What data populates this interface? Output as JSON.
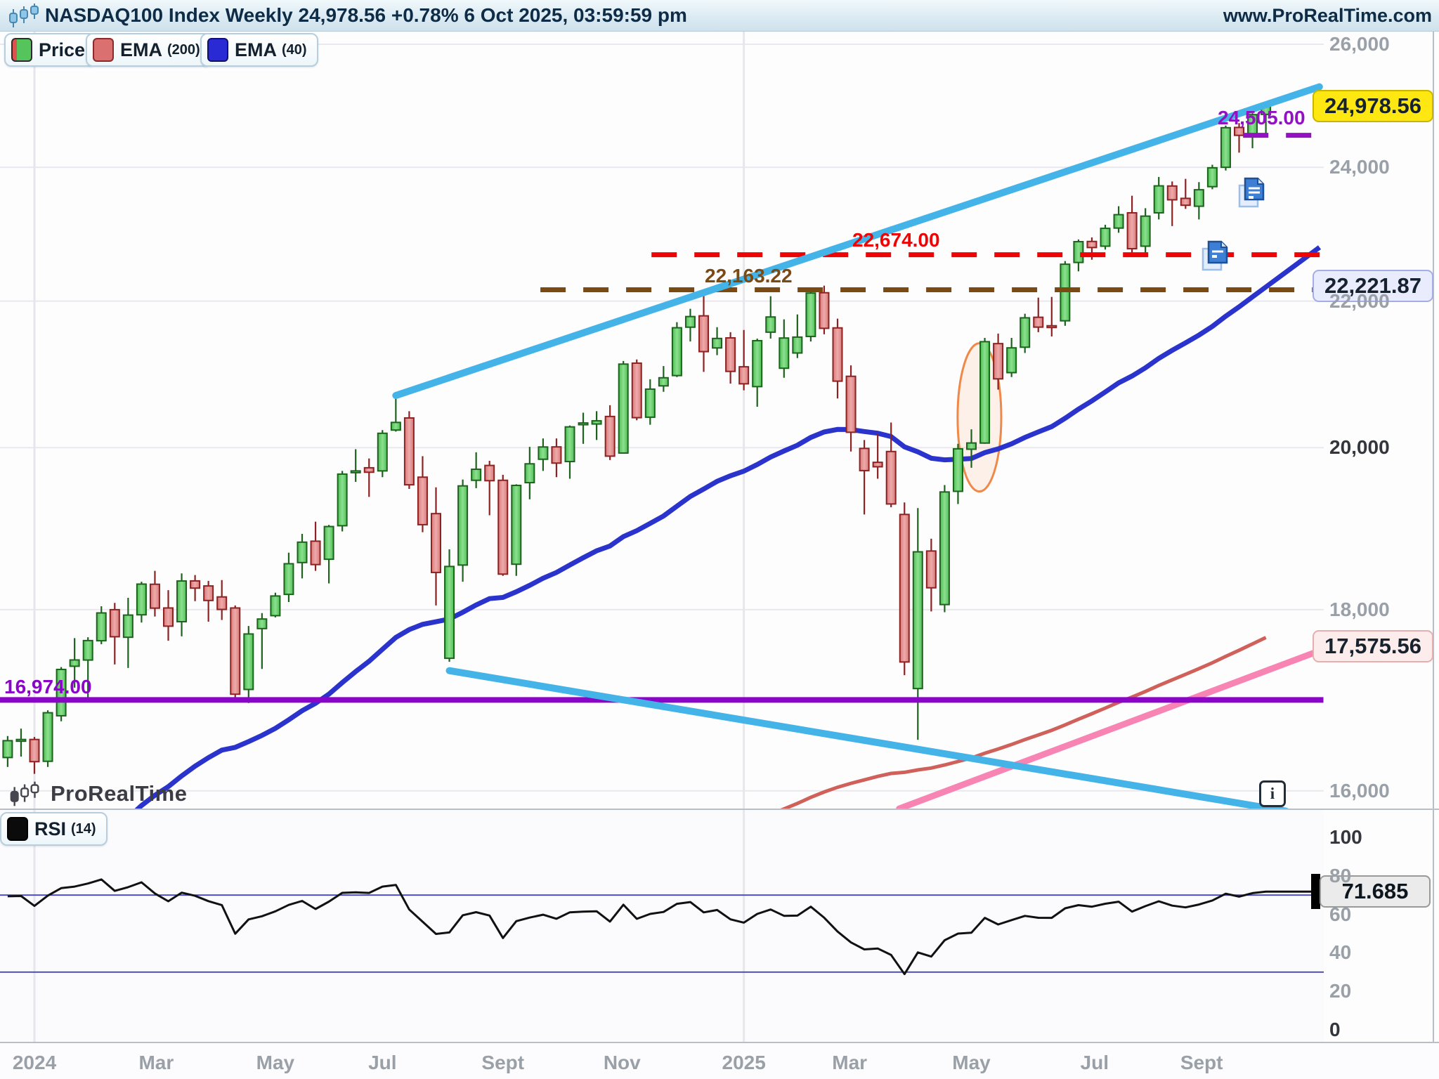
{
  "header": {
    "title": "NASDAQ100 Index Weekly 24,978.56 +0.78% 6 Oct 2025, 03:59:59 pm",
    "url": "www.ProRealTime.com"
  },
  "legend": {
    "price": {
      "label": "Price"
    },
    "ema200": {
      "label": "EMA",
      "param": "(200)"
    },
    "ema40": {
      "label": "EMA",
      "param": "(40)"
    }
  },
  "rsi_legend": {
    "label": "RSI",
    "param": "(14)"
  },
  "watermark": {
    "text": "ProRealTime"
  },
  "info_button": {
    "glyph": "i"
  },
  "callouts": {
    "last_price": "24,978.56",
    "ema40": "22,221.87",
    "ema200": "17,575.56",
    "rsi": "71.685"
  },
  "axis": {
    "price_ticks": [
      {
        "value": 26000,
        "label": "26,000",
        "strong": false
      },
      {
        "value": 24000,
        "label": "24,000",
        "strong": false
      },
      {
        "value": 22000,
        "label": "22,000",
        "strong": false
      },
      {
        "value": 20000,
        "label": "20,000",
        "strong": true
      },
      {
        "value": 18000,
        "label": "18,000",
        "strong": false
      },
      {
        "value": 16000,
        "label": "16,000",
        "strong": false
      }
    ],
    "rsi_ticks": [
      {
        "value": 100,
        "label": "100",
        "strong": true
      },
      {
        "value": 80,
        "label": "80",
        "strong": false
      },
      {
        "value": 60,
        "label": "60",
        "strong": false
      },
      {
        "value": 40,
        "label": "40",
        "strong": false
      },
      {
        "value": 20,
        "label": "20",
        "strong": false
      },
      {
        "value": 0,
        "label": "0",
        "strong": true
      }
    ],
    "month_ticks": [
      {
        "label": "2024",
        "week": 2.0,
        "strong": true,
        "gridline": true
      },
      {
        "label": "Mar",
        "week": 11.1,
        "strong": false,
        "gridline": false
      },
      {
        "label": "May",
        "week": 20.0,
        "strong": false,
        "gridline": false
      },
      {
        "label": "Jul",
        "week": 28.0,
        "strong": false,
        "gridline": false
      },
      {
        "label": "Sept",
        "week": 37.0,
        "strong": false,
        "gridline": false
      },
      {
        "label": "Nov",
        "week": 45.9,
        "strong": false,
        "gridline": false
      },
      {
        "label": "2025",
        "week": 55.0,
        "strong": true,
        "gridline": true
      },
      {
        "label": "Mar",
        "week": 62.9,
        "strong": false,
        "gridline": false
      },
      {
        "label": "May",
        "week": 72.0,
        "strong": false,
        "gridline": false
      },
      {
        "label": "Jul",
        "week": 81.2,
        "strong": false,
        "gridline": false
      },
      {
        "label": "Sept",
        "week": 89.2,
        "strong": false,
        "gridline": false
      }
    ]
  },
  "chart_data": {
    "type": "candlestick",
    "title": "NASDAQ100 Index Weekly",
    "last_price": 24978.56,
    "change_pct": "+0.78%",
    "timestamp": "6 Oct 2025, 03:59:59 pm",
    "price_scale": "log",
    "interval": "weekly",
    "start_date": "2023-12-18",
    "ylim": [
      15790,
      26190
    ],
    "candles": [
      [
        16350,
        16580,
        16250,
        16530
      ],
      [
        16530,
        16660,
        16360,
        16543
      ],
      [
        16543,
        16570,
        16177,
        16306
      ],
      [
        16310,
        16860,
        16250,
        16833
      ],
      [
        16800,
        17340,
        16740,
        17314
      ],
      [
        17350,
        17670,
        17110,
        17421
      ],
      [
        17420,
        17680,
        16970,
        17642
      ],
      [
        17640,
        18040,
        17600,
        17962
      ],
      [
        18000,
        18080,
        17370,
        17686
      ],
      [
        17680,
        18140,
        17330,
        17937
      ],
      [
        17940,
        18330,
        17850,
        18302
      ],
      [
        18300,
        18460,
        17920,
        18018
      ],
      [
        18020,
        18230,
        17640,
        17808
      ],
      [
        17860,
        18430,
        17690,
        18339
      ],
      [
        18340,
        18410,
        18100,
        18254
      ],
      [
        18280,
        18340,
        17860,
        18108
      ],
      [
        18150,
        18350,
        17880,
        18003
      ],
      [
        18020,
        18050,
        16970,
        17037
      ],
      [
        17090,
        17810,
        16940,
        17718
      ],
      [
        17780,
        17960,
        17320,
        17891
      ],
      [
        17930,
        18200,
        17910,
        18161
      ],
      [
        18180,
        18680,
        18090,
        18546
      ],
      [
        18560,
        18910,
        18370,
        18808
      ],
      [
        18820,
        19060,
        18460,
        18536
      ],
      [
        18600,
        19020,
        18310,
        19000
      ],
      [
        19010,
        19700,
        18940,
        19659
      ],
      [
        19690,
        19980,
        19560,
        19700
      ],
      [
        19740,
        19860,
        19370,
        19683
      ],
      [
        19700,
        20230,
        19620,
        20188
      ],
      [
        20230,
        20690,
        20210,
        20331
      ],
      [
        20390,
        20480,
        19470,
        19523
      ],
      [
        19620,
        19890,
        18930,
        19023
      ],
      [
        19160,
        19490,
        18050,
        18441
      ],
      [
        17440,
        18720,
        17400,
        18513
      ],
      [
        18530,
        19590,
        18330,
        19509
      ],
      [
        19580,
        19940,
        19480,
        19721
      ],
      [
        19770,
        19830,
        19140,
        19575
      ],
      [
        19580,
        19650,
        18400,
        18421
      ],
      [
        18540,
        19530,
        18400,
        19515
      ],
      [
        19550,
        20010,
        19340,
        19791
      ],
      [
        19850,
        20120,
        19700,
        20009
      ],
      [
        20010,
        20120,
        19620,
        19800
      ],
      [
        19820,
        20290,
        19600,
        20272
      ],
      [
        20320,
        20460,
        20050,
        20324
      ],
      [
        20310,
        20480,
        20100,
        20352
      ],
      [
        20410,
        20560,
        19840,
        19890
      ],
      [
        19930,
        21160,
        19930,
        21117
      ],
      [
        21130,
        21180,
        20360,
        20394
      ],
      [
        20400,
        20910,
        20300,
        20776
      ],
      [
        20820,
        21090,
        20740,
        20930
      ],
      [
        20960,
        21700,
        20940,
        21622
      ],
      [
        21630,
        21890,
        21430,
        21780
      ],
      [
        21790,
        22130,
        21010,
        21289
      ],
      [
        21340,
        21630,
        21240,
        21472
      ],
      [
        21480,
        21560,
        20850,
        21017
      ],
      [
        21080,
        21590,
        20760,
        20848
      ],
      [
        20810,
        21470,
        20540,
        21441
      ],
      [
        21560,
        22070,
        21470,
        21774
      ],
      [
        21060,
        21740,
        20930,
        21478
      ],
      [
        21270,
        21810,
        21200,
        21491
      ],
      [
        21500,
        22140,
        21430,
        22115
      ],
      [
        22120,
        22222,
        21530,
        21614
      ],
      [
        21620,
        21750,
        20650,
        20884
      ],
      [
        20950,
        21100,
        19950,
        20201
      ],
      [
        19990,
        20100,
        19150,
        19704
      ],
      [
        19810,
        20180,
        19600,
        19753
      ],
      [
        19950,
        20330,
        19240,
        19281
      ],
      [
        19150,
        19300,
        17250,
        17398
      ],
      [
        17100,
        19230,
        16540,
        18690
      ],
      [
        18700,
        18850,
        17980,
        18258
      ],
      [
        18060,
        19520,
        17970,
        19432
      ],
      [
        19440,
        20050,
        19280,
        19985
      ],
      [
        19980,
        20240,
        19740,
        20061
      ],
      [
        20060,
        21480,
        20050,
        21427
      ],
      [
        21400,
        21540,
        20770,
        20915
      ],
      [
        21000,
        21480,
        20940,
        21341
      ],
      [
        21350,
        21820,
        21270,
        21762
      ],
      [
        21770,
        22050,
        21560,
        21631
      ],
      [
        21650,
        22060,
        21500,
        21626
      ],
      [
        21720,
        22580,
        21650,
        22534
      ],
      [
        22560,
        22900,
        22430,
        22867
      ],
      [
        22870,
        22930,
        22600,
        22780
      ],
      [
        22800,
        23120,
        22750,
        23066
      ],
      [
        23070,
        23400,
        23000,
        23272
      ],
      [
        23300,
        23560,
        22650,
        22763
      ],
      [
        22800,
        23370,
        22700,
        23250
      ],
      [
        23300,
        23850,
        23200,
        23712
      ],
      [
        23710,
        23780,
        23100,
        23498
      ],
      [
        23520,
        23820,
        23360,
        23415
      ],
      [
        23400,
        23770,
        23200,
        23652
      ],
      [
        23700,
        24040,
        23660,
        23992
      ],
      [
        24000,
        24660,
        23950,
        24626
      ],
      [
        24630,
        24700,
        24230,
        24504
      ],
      [
        24520,
        24860,
        24300,
        24836
      ],
      [
        24840,
        25020,
        24500,
        24978.56
      ]
    ],
    "indicators": {
      "ema40": {
        "period": 40,
        "seed": 14700,
        "last_value": 22221.87,
        "color": "#2a33cc"
      },
      "ema200": {
        "period": 200,
        "seed": 12900,
        "last_value": 17575.56,
        "color": "#d0605a"
      },
      "rsi": {
        "period": 14,
        "seed_gain": 170,
        "seed_loss": 75,
        "last_value": 71.685,
        "guides": [
          70,
          30
        ],
        "color": "#111111",
        "guide_color": "#4444c0"
      }
    },
    "levels": [
      {
        "name": "support-purple",
        "label": "16,974.00",
        "price": 16974,
        "from_week": -0.6,
        "to_week": 98.3,
        "style": "solid",
        "color": "#8a05c8",
        "width": 8
      },
      {
        "name": "resistance-brown",
        "label": "22,163.22",
        "price": 22163.22,
        "from_week": 39.8,
        "to_week": 98.3,
        "style": "dashed",
        "color": "#7a4a12",
        "width": 7
      },
      {
        "name": "resistance-red",
        "label": "22,674.00",
        "price": 22674,
        "from_week": 48.1,
        "to_week": 98.3,
        "style": "dashed",
        "color": "#ee0404",
        "width": 7
      },
      {
        "name": "resistance-purple-dashed",
        "label": "24,505.00",
        "price": 24505,
        "from_week": 92.3,
        "to_week": 98.3,
        "style": "dashed",
        "color": "#9012c0",
        "width": 7
      }
    ],
    "trendlines": [
      {
        "name": "rising-channel-line",
        "color": "#44b4e8",
        "width": 10,
        "from": {
          "week": 29,
          "price": 20690
        },
        "to": {
          "week": 98.0,
          "price": 25290
        }
      },
      {
        "name": "falling-support-line",
        "color": "#44b4e8",
        "width": 10,
        "from": {
          "week": 33,
          "price": 17300
        },
        "to": {
          "week": 95.5,
          "price": 15790
        }
      },
      {
        "name": "pink-trendline",
        "color": "#f884b4",
        "width": 9,
        "from": {
          "week": 66.6,
          "price": 15815
        },
        "to": {
          "week": 98.0,
          "price": 17525
        }
      }
    ],
    "ellipse_annotation": {
      "week": 72.6,
      "price_top": 21405,
      "price_bottom": 19438,
      "rx_weeks": 1.63,
      "color": "#f08848"
    }
  }
}
